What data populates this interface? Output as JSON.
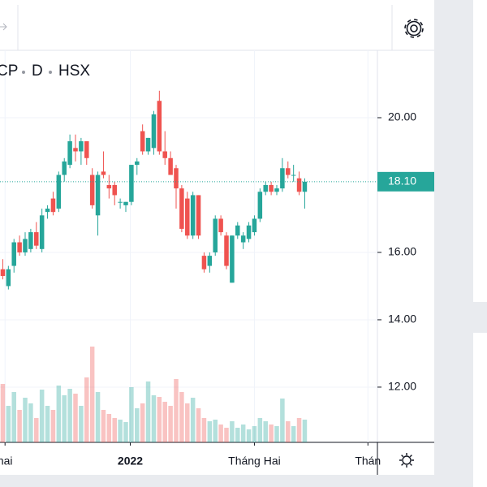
{
  "chart_data": {
    "type": "candlestick",
    "symbol": "CP",
    "interval": "D",
    "exchange": "HSX",
    "series": [
      {
        "name": "price",
        "up_color": "#26a69a",
        "down_color": "#ef5350",
        "open": [
          15.5,
          15.0,
          15.6,
          16.3,
          16.0,
          16.1,
          16.6,
          16.1,
          17.2,
          17.6,
          17.3,
          18.3,
          18.6,
          19.1,
          19.0,
          19.3,
          18.3,
          17.1,
          18.4,
          18.0,
          18.0,
          17.5,
          17.4,
          17.5,
          18.6,
          19.6,
          19.0,
          19.1,
          20.5,
          19.0,
          18.8,
          18.5,
          17.9,
          17.6,
          16.5,
          17.7,
          15.9,
          15.6,
          16.0,
          17.0,
          16.5,
          15.1,
          16.5,
          16.3,
          16.4,
          16.6,
          17.0,
          17.8,
          18.0,
          17.8,
          17.9,
          18.5,
          18.3,
          18.2,
          17.8
        ],
        "high": [
          15.8,
          15.6,
          16.4,
          16.5,
          16.6,
          16.7,
          16.9,
          17.3,
          17.4,
          17.8,
          18.4,
          18.8,
          19.5,
          19.5,
          19.4,
          19.3,
          18.5,
          18.4,
          19.0,
          18.3,
          18.1,
          17.6,
          17.5,
          18.6,
          18.8,
          19.8,
          19.4,
          20.2,
          20.8,
          19.6,
          19.0,
          18.6,
          18.0,
          17.8,
          17.8,
          17.7,
          16.0,
          16.0,
          17.1,
          17.1,
          16.6,
          16.5,
          16.9,
          16.6,
          16.9,
          17.1,
          17.9,
          18.1,
          18.1,
          18.0,
          18.8,
          18.7,
          18.6,
          18.4,
          18.2
        ],
        "low": [
          15.2,
          14.9,
          15.4,
          15.9,
          15.9,
          16.0,
          16.1,
          16.0,
          17.0,
          17.1,
          17.2,
          18.1,
          18.5,
          18.7,
          18.6,
          18.6,
          17.3,
          16.5,
          18.2,
          17.6,
          17.4,
          17.3,
          17.2,
          17.4,
          18.3,
          18.9,
          18.9,
          18.9,
          18.9,
          18.6,
          18.3,
          17.3,
          16.6,
          16.4,
          16.4,
          16.4,
          15.4,
          15.4,
          15.9,
          16.5,
          15.5,
          15.1,
          16.4,
          16.1,
          16.3,
          16.5,
          16.9,
          17.7,
          17.7,
          17.7,
          17.8,
          18.2,
          18.1,
          17.7,
          17.3
        ],
        "close": [
          15.3,
          15.5,
          16.3,
          16.0,
          16.4,
          16.6,
          16.2,
          17.1,
          17.3,
          17.2,
          18.3,
          18.7,
          19.3,
          19.0,
          19.3,
          18.8,
          17.4,
          18.3,
          18.3,
          17.9,
          17.7,
          17.5,
          17.5,
          18.6,
          18.7,
          19.0,
          19.4,
          20.1,
          19.0,
          18.8,
          18.3,
          17.9,
          16.7,
          16.5,
          17.7,
          16.5,
          15.5,
          15.9,
          17.0,
          16.6,
          15.6,
          16.5,
          16.8,
          16.5,
          16.8,
          17.0,
          17.8,
          18.0,
          17.8,
          17.9,
          18.5,
          18.3,
          18.3,
          17.8,
          18.1
        ],
        "volume": [
          72,
          45,
          62,
          40,
          55,
          48,
          30,
          65,
          45,
          40,
          70,
          58,
          66,
          60,
          45,
          80,
          118,
          62,
          40,
          35,
          30,
          28,
          25,
          68,
          42,
          48,
          75,
          58,
          56,
          50,
          45,
          78,
          62,
          48,
          55,
          42,
          30,
          26,
          28,
          22,
          18,
          26,
          18,
          22,
          16,
          20,
          30,
          26,
          22,
          20,
          54,
          26,
          20,
          30,
          28
        ]
      }
    ],
    "ylim": [
      10.36,
      22.0
    ],
    "yticks": [
      {
        "value": 20,
        "label": "20.00"
      },
      {
        "value": 16,
        "label": "16.00"
      },
      {
        "value": 14,
        "label": "14.00"
      },
      {
        "value": 12,
        "label": "12.00"
      }
    ],
    "xlim": [
      -0.5,
      67.0
    ],
    "xticks": [
      {
        "value": 0.4,
        "label": "hai"
      },
      {
        "value": 22.8,
        "label": "2022"
      },
      {
        "value": 45.0,
        "label": "Tháng Hai"
      },
      {
        "value": 65.3,
        "label": "Thán"
      }
    ],
    "last_price": {
      "value": 18.1,
      "label": "18.10"
    },
    "grid": true
  }
}
